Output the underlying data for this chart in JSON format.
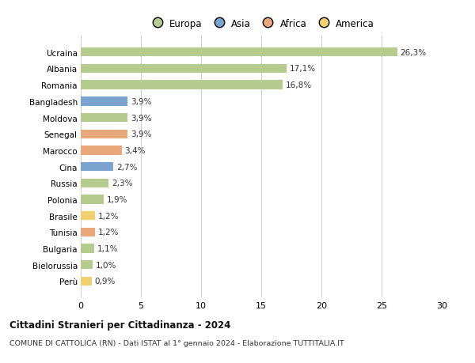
{
  "countries": [
    "Ucraina",
    "Albania",
    "Romania",
    "Bangladesh",
    "Moldova",
    "Senegal",
    "Marocco",
    "Cina",
    "Russia",
    "Polonia",
    "Brasile",
    "Tunisia",
    "Bulgaria",
    "Bielorussia",
    "Perù"
  ],
  "values": [
    26.3,
    17.1,
    16.8,
    3.9,
    3.9,
    3.9,
    3.4,
    2.7,
    2.3,
    1.9,
    1.2,
    1.2,
    1.1,
    1.0,
    0.9
  ],
  "labels": [
    "26,3%",
    "17,1%",
    "16,8%",
    "3,9%",
    "3,9%",
    "3,9%",
    "3,4%",
    "2,7%",
    "2,3%",
    "1,9%",
    "1,2%",
    "1,2%",
    "1,1%",
    "1,0%",
    "0,9%"
  ],
  "continents": [
    "Europa",
    "Europa",
    "Europa",
    "Asia",
    "Europa",
    "Africa",
    "Africa",
    "Asia",
    "Europa",
    "Europa",
    "America",
    "Africa",
    "Europa",
    "Europa",
    "America"
  ],
  "colors": {
    "Europa": "#b5cc8e",
    "Asia": "#7ba3d0",
    "Africa": "#e8a87c",
    "America": "#f0d070"
  },
  "xlim": [
    0,
    30
  ],
  "xticks": [
    0,
    5,
    10,
    15,
    20,
    25,
    30
  ],
  "title": "Cittadini Stranieri per Cittadinanza - 2024",
  "subtitle": "COMUNE DI CATTOLICA (RN) - Dati ISTAT al 1° gennaio 2024 - Elaborazione TUTTITALIA.IT",
  "background_color": "#ffffff",
  "grid_color": "#cccccc"
}
